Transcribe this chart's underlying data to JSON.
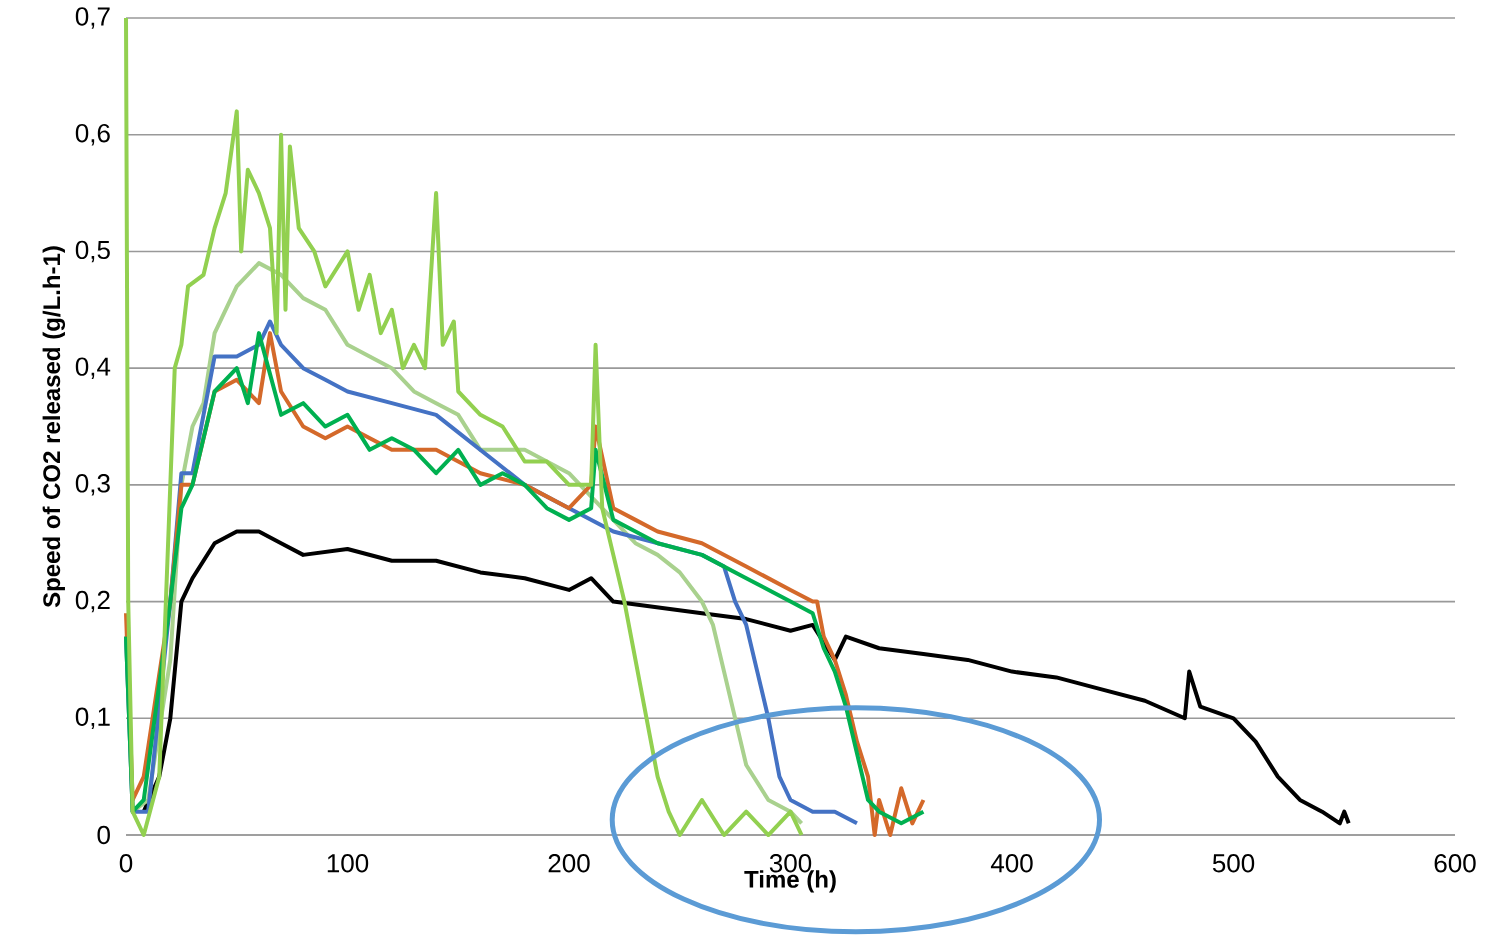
{
  "chart_data": {
    "type": "line",
    "xlabel": "Time (h)",
    "ylabel": "Speed of CO2 released (g/L.h-1)",
    "xlim": [
      0,
      600
    ],
    "xticks": [
      0,
      100,
      200,
      300,
      400,
      500,
      600
    ],
    "ylim": [
      0,
      0.7
    ],
    "yticks": [
      {
        "value": 0,
        "label": "0"
      },
      {
        "value": 0.1,
        "label": "0,1"
      },
      {
        "value": 0.2,
        "label": "0,2"
      },
      {
        "value": 0.3,
        "label": "0,3"
      },
      {
        "value": 0.4,
        "label": "0,4"
      },
      {
        "value": 0.5,
        "label": "0,5"
      },
      {
        "value": 0.6,
        "label": "0,6"
      },
      {
        "value": 0.7,
        "label": "0,7"
      }
    ],
    "grid": "y",
    "series": [
      {
        "color": "#000000",
        "x": [
          8,
          15,
          20,
          25,
          30,
          40,
          50,
          60,
          70,
          80,
          100,
          120,
          140,
          160,
          180,
          200,
          210,
          220,
          240,
          260,
          280,
          300,
          310,
          320,
          325,
          340,
          360,
          380,
          400,
          420,
          440,
          460,
          478,
          480,
          485,
          500,
          510,
          520,
          530,
          540,
          548,
          550,
          552
        ],
        "values": [
          0.02,
          0.05,
          0.1,
          0.2,
          0.22,
          0.25,
          0.26,
          0.26,
          0.25,
          0.24,
          0.245,
          0.235,
          0.235,
          0.225,
          0.22,
          0.21,
          0.22,
          0.2,
          0.195,
          0.19,
          0.185,
          0.175,
          0.18,
          0.15,
          0.17,
          0.16,
          0.155,
          0.15,
          0.14,
          0.135,
          0.125,
          0.115,
          0.1,
          0.14,
          0.11,
          0.1,
          0.08,
          0.05,
          0.03,
          0.02,
          0.01,
          0.02,
          0.01
        ]
      },
      {
        "color": "#a9d18e",
        "x": [
          0,
          3,
          10,
          20,
          25,
          30,
          35,
          40,
          50,
          60,
          70,
          80,
          90,
          100,
          110,
          120,
          130,
          140,
          150,
          160,
          180,
          200,
          210,
          220,
          230,
          240,
          250,
          260,
          265,
          270,
          275,
          280,
          290,
          300,
          305
        ],
        "values": [
          0.17,
          0.02,
          0.03,
          0.15,
          0.3,
          0.35,
          0.37,
          0.43,
          0.47,
          0.49,
          0.48,
          0.46,
          0.45,
          0.42,
          0.41,
          0.4,
          0.38,
          0.37,
          0.36,
          0.33,
          0.33,
          0.31,
          0.29,
          0.27,
          0.25,
          0.24,
          0.225,
          0.2,
          0.18,
          0.14,
          0.1,
          0.06,
          0.03,
          0.02,
          0.01
        ]
      },
      {
        "color": "#4472c4",
        "x": [
          0,
          3,
          10,
          20,
          25,
          30,
          40,
          50,
          60,
          65,
          70,
          80,
          90,
          100,
          120,
          140,
          160,
          180,
          200,
          220,
          240,
          260,
          270,
          275,
          280,
          285,
          290,
          295,
          300,
          310,
          320,
          330
        ],
        "values": [
          0.17,
          0.02,
          0.02,
          0.2,
          0.31,
          0.31,
          0.41,
          0.41,
          0.42,
          0.44,
          0.42,
          0.4,
          0.39,
          0.38,
          0.37,
          0.36,
          0.33,
          0.3,
          0.28,
          0.26,
          0.25,
          0.24,
          0.23,
          0.2,
          0.18,
          0.14,
          0.1,
          0.05,
          0.03,
          0.02,
          0.02,
          0.01
        ]
      },
      {
        "color": "#d4692a",
        "x": [
          0,
          3,
          8,
          20,
          25,
          30,
          40,
          50,
          60,
          65,
          70,
          80,
          90,
          100,
          120,
          140,
          160,
          180,
          200,
          210,
          212,
          220,
          230,
          240,
          260,
          280,
          300,
          310,
          312,
          315,
          320,
          325,
          330,
          335,
          338,
          340,
          345,
          350,
          355,
          360
        ],
        "values": [
          0.19,
          0.03,
          0.05,
          0.2,
          0.3,
          0.3,
          0.38,
          0.39,
          0.37,
          0.43,
          0.38,
          0.35,
          0.34,
          0.35,
          0.33,
          0.33,
          0.31,
          0.3,
          0.28,
          0.3,
          0.35,
          0.28,
          0.27,
          0.26,
          0.25,
          0.23,
          0.21,
          0.2,
          0.2,
          0.17,
          0.15,
          0.12,
          0.08,
          0.05,
          0.0,
          0.03,
          0.0,
          0.04,
          0.01,
          0.03
        ]
      },
      {
        "color": "#00b050",
        "x": [
          0,
          3,
          8,
          20,
          25,
          30,
          40,
          50,
          55,
          60,
          70,
          80,
          90,
          100,
          110,
          120,
          130,
          140,
          150,
          160,
          170,
          180,
          190,
          200,
          210,
          212,
          220,
          230,
          240,
          260,
          280,
          300,
          310,
          315,
          320,
          325,
          330,
          335,
          340,
          350,
          360
        ],
        "values": [
          0.17,
          0.02,
          0.03,
          0.2,
          0.28,
          0.3,
          0.38,
          0.4,
          0.37,
          0.43,
          0.36,
          0.37,
          0.35,
          0.36,
          0.33,
          0.34,
          0.33,
          0.31,
          0.33,
          0.3,
          0.31,
          0.3,
          0.28,
          0.27,
          0.28,
          0.33,
          0.27,
          0.26,
          0.25,
          0.24,
          0.22,
          0.2,
          0.19,
          0.16,
          0.14,
          0.11,
          0.07,
          0.03,
          0.02,
          0.01,
          0.02
        ]
      },
      {
        "color": "#92d050",
        "x": [
          0,
          1,
          3,
          8,
          15,
          20,
          22,
          25,
          28,
          35,
          40,
          45,
          50,
          52,
          55,
          60,
          65,
          68,
          70,
          72,
          74,
          78,
          85,
          90,
          100,
          105,
          110,
          115,
          120,
          125,
          130,
          135,
          140,
          143,
          148,
          150,
          160,
          170,
          180,
          190,
          200,
          210,
          212,
          215,
          220,
          225,
          230,
          235,
          240,
          245,
          250,
          260,
          270,
          280,
          290,
          300,
          305
        ],
        "values": [
          0.7,
          0.2,
          0.02,
          0.0,
          0.05,
          0.3,
          0.4,
          0.42,
          0.47,
          0.48,
          0.52,
          0.55,
          0.62,
          0.5,
          0.57,
          0.55,
          0.52,
          0.43,
          0.6,
          0.45,
          0.59,
          0.52,
          0.5,
          0.47,
          0.5,
          0.45,
          0.48,
          0.43,
          0.45,
          0.4,
          0.42,
          0.4,
          0.55,
          0.42,
          0.44,
          0.38,
          0.36,
          0.35,
          0.32,
          0.32,
          0.3,
          0.3,
          0.42,
          0.28,
          0.24,
          0.2,
          0.15,
          0.1,
          0.05,
          0.02,
          0.0,
          0.03,
          0.0,
          0.02,
          0.0,
          0.02,
          0.0
        ]
      }
    ]
  }
}
